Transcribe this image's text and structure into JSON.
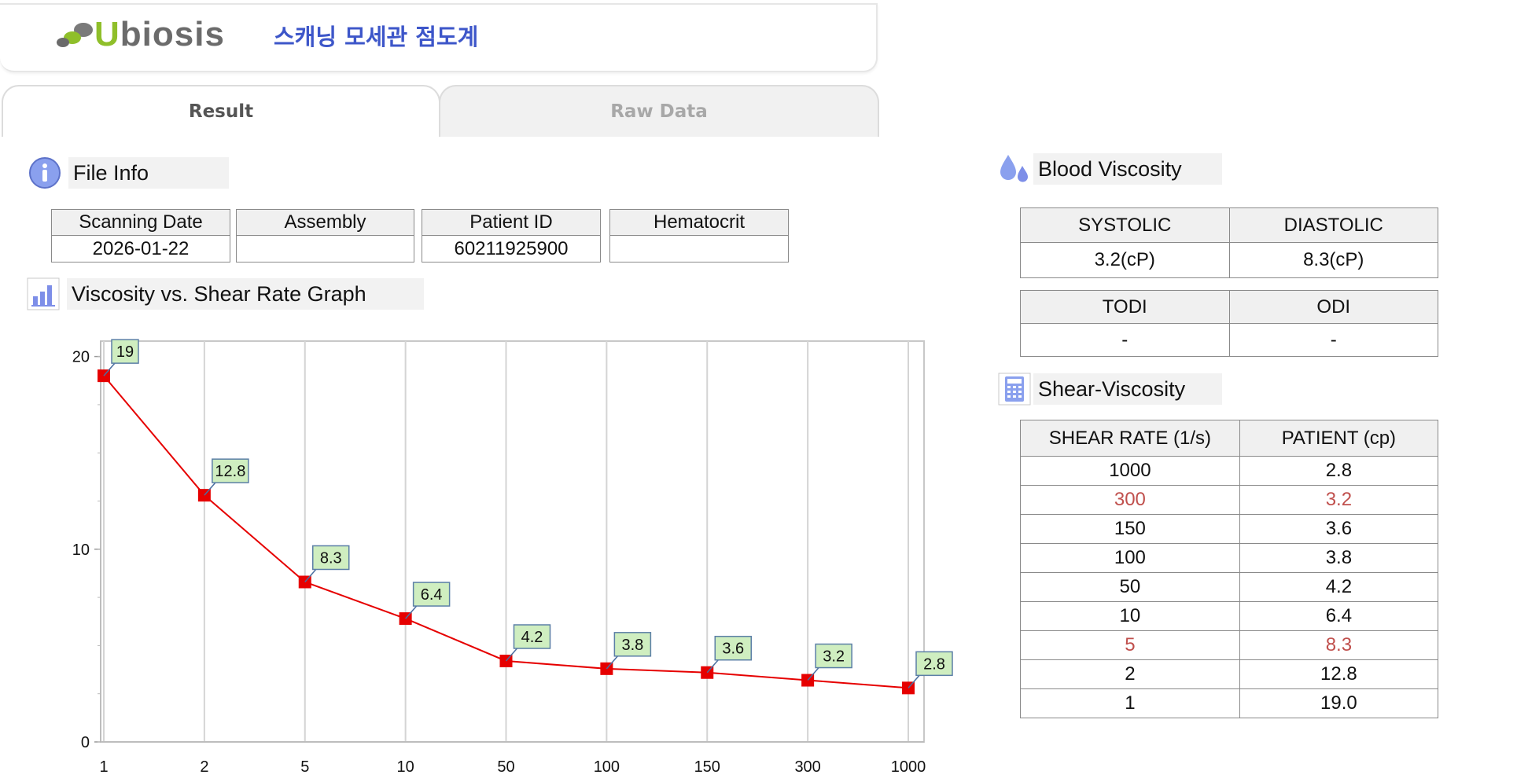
{
  "header": {
    "logo_text": "Ubiosis",
    "app_title": "스캐닝 모세관 점도계"
  },
  "tabs": [
    {
      "label": "Result",
      "active": true
    },
    {
      "label": "Raw Data",
      "active": false
    }
  ],
  "file_info": {
    "title": "File Info",
    "columns": [
      {
        "header": "Scanning Date",
        "value": "2026-01-22"
      },
      {
        "header": "Assembly",
        "value": ""
      },
      {
        "header": "Patient ID",
        "value": "60211925900"
      },
      {
        "header": "Hematocrit",
        "value": ""
      }
    ]
  },
  "graph_section": {
    "title": "Viscosity vs. Shear Rate Graph"
  },
  "chart_data": {
    "type": "line",
    "categories": [
      "1",
      "2",
      "5",
      "10",
      "50",
      "100",
      "150",
      "300",
      "1000"
    ],
    "series": [
      {
        "values": [
          19,
          12.8,
          8.3,
          6.4,
          4.2,
          3.8,
          3.6,
          3.2,
          2.8
        ],
        "color": "#e60000"
      }
    ],
    "data_labels": [
      "19",
      "12.8",
      "8.3",
      "6.4",
      "4.2",
      "3.8",
      "3.6",
      "3.2",
      "2.8"
    ],
    "yticks": [
      "0",
      "10",
      "20"
    ],
    "ylim": [
      0,
      20.8
    ],
    "grid": true,
    "label_bg": "#cfeec0",
    "label_border": "#5b7fa6"
  },
  "blood_viscosity": {
    "title": "Blood Viscosity",
    "systolic_label": "SYSTOLIC",
    "diastolic_label": "DIASTOLIC",
    "systolic_value": "3.2(cP)",
    "diastolic_value": "8.3(cP)",
    "todi_label": "TODI",
    "odi_label": "ODI",
    "todi_value": "-",
    "odi_value": "-"
  },
  "shear_viscosity": {
    "title": "Shear-Viscosity",
    "headers": [
      "SHEAR RATE (1/s)",
      "PATIENT (cp)"
    ],
    "rows": [
      {
        "rate": "1000",
        "patient": "2.8",
        "highlight": false
      },
      {
        "rate": "300",
        "patient": "3.2",
        "highlight": true
      },
      {
        "rate": "150",
        "patient": "3.6",
        "highlight": false
      },
      {
        "rate": "100",
        "patient": "3.8",
        "highlight": false
      },
      {
        "rate": "50",
        "patient": "4.2",
        "highlight": false
      },
      {
        "rate": "10",
        "patient": "6.4",
        "highlight": false
      },
      {
        "rate": "5",
        "patient": "8.3",
        "highlight": true
      },
      {
        "rate": "2",
        "patient": "12.8",
        "highlight": false
      },
      {
        "rate": "1",
        "patient": "19.0",
        "highlight": false
      }
    ],
    "highlight_color": "#c0504d"
  },
  "icons": {
    "file_info": "info-icon",
    "graph": "bar-chart-icon",
    "blood": "drops-icon",
    "shear": "calculator-icon"
  }
}
